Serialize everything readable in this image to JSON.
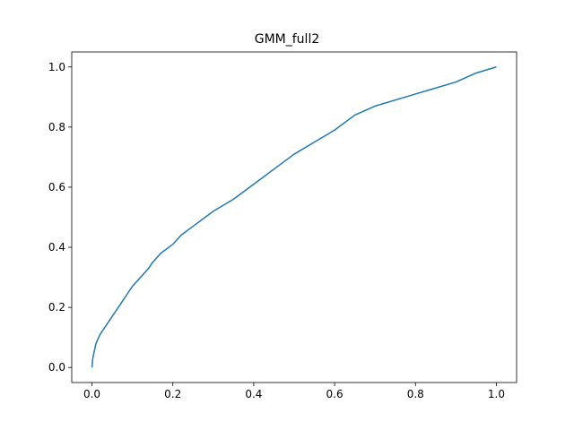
{
  "chart_data": {
    "type": "line",
    "title": "GMM_full2",
    "xlabel": "",
    "ylabel": "",
    "xlim": [
      -0.05,
      1.05
    ],
    "ylim": [
      -0.05,
      1.05
    ],
    "xticks": [
      0.0,
      0.2,
      0.4,
      0.6,
      0.8,
      1.0
    ],
    "xtick_labels": [
      "0.0",
      "0.2",
      "0.4",
      "0.6",
      "0.8",
      "1.0"
    ],
    "yticks": [
      0.0,
      0.2,
      0.4,
      0.6,
      0.8,
      1.0
    ],
    "ytick_labels": [
      "0.0",
      "0.2",
      "0.4",
      "0.6",
      "0.8",
      "1.0"
    ],
    "grid": false,
    "series": [
      {
        "color": "#1f77b4",
        "x": [
          0.0,
          0.002,
          0.005,
          0.01,
          0.02,
          0.03,
          0.04,
          0.05,
          0.06,
          0.07,
          0.08,
          0.09,
          0.1,
          0.12,
          0.14,
          0.15,
          0.17,
          0.2,
          0.22,
          0.25,
          0.28,
          0.3,
          0.35,
          0.4,
          0.45,
          0.5,
          0.55,
          0.6,
          0.65,
          0.7,
          0.75,
          0.8,
          0.85,
          0.9,
          0.95,
          1.0
        ],
        "y": [
          0.0,
          0.03,
          0.05,
          0.08,
          0.11,
          0.13,
          0.15,
          0.17,
          0.19,
          0.21,
          0.23,
          0.25,
          0.27,
          0.3,
          0.33,
          0.35,
          0.38,
          0.41,
          0.44,
          0.47,
          0.5,
          0.52,
          0.56,
          0.61,
          0.66,
          0.71,
          0.75,
          0.79,
          0.84,
          0.87,
          0.89,
          0.91,
          0.93,
          0.95,
          0.98,
          1.0
        ]
      }
    ]
  }
}
